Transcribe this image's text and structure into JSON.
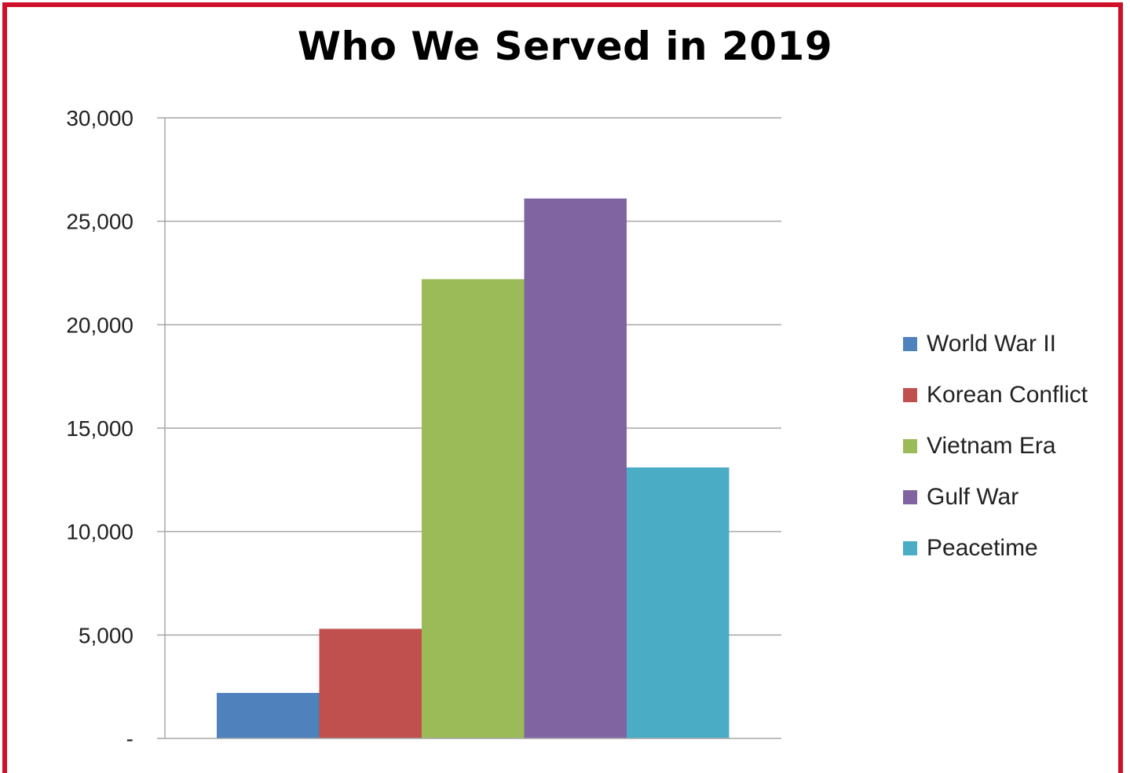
{
  "chart_data": {
    "type": "bar",
    "title": "Who We Served in 2019",
    "xlabel": "",
    "ylabel": "",
    "categories": [
      "World War II",
      "Korean Conflict",
      "Vietnam Era",
      "Gulf War",
      "Peacetime"
    ],
    "values": [
      2200,
      5300,
      22200,
      26100,
      13100
    ],
    "colors": [
      "#4f81bd",
      "#c0504d",
      "#9bbb59",
      "#8064a2",
      "#4bacc6"
    ],
    "ylim": [
      0,
      30000
    ],
    "yticks": [
      0,
      5000,
      10000,
      15000,
      20000,
      25000,
      30000
    ],
    "ytick_labels": [
      "-",
      "5,000",
      "10,000",
      "15,000",
      "20,000",
      "25,000",
      "30,000"
    ],
    "grid": true,
    "legend": {
      "position": "right",
      "entries": [
        "World War II",
        "Korean Conflict",
        "Vietnam Era",
        "Gulf War",
        "Peacetime"
      ]
    }
  }
}
